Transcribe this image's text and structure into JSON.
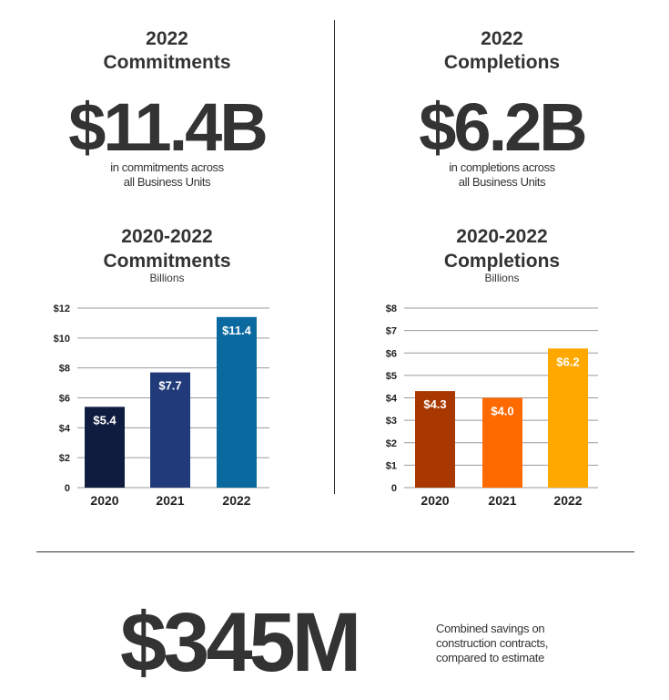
{
  "commitments": {
    "heading_line1": "2022",
    "heading_line2": "Commitments",
    "value": "$11.4B",
    "desc_line1": "in commitments across",
    "desc_line2": "all Business Units",
    "chart_heading_line1": "2020-2022",
    "chart_heading_line2": "Commitments",
    "chart_unit": "Billions"
  },
  "completions": {
    "heading_line1": "2022",
    "heading_line2": "Completions",
    "value": "$6.2B",
    "desc_line1": "in completions across",
    "desc_line2": "all Business Units",
    "chart_heading_line1": "2020-2022",
    "chart_heading_line2": "Completions",
    "chart_unit": "Billions"
  },
  "savings": {
    "value": "$345M",
    "desc_line1": "Combined savings on",
    "desc_line2": "construction contracts,",
    "desc_line3": "compared to estimate"
  },
  "chart_data": [
    {
      "type": "bar",
      "title": "",
      "categories": [
        "2020",
        "2021",
        "2022"
      ],
      "values": [
        5.4,
        7.7,
        11.4
      ],
      "bar_labels": [
        "$5.4",
        "$7.7",
        "$11.4"
      ],
      "colors": [
        "#0f1c3f",
        "#213a7a",
        "#0a6aa0"
      ],
      "ylim": [
        0,
        12
      ],
      "yticks": [
        0,
        2,
        4,
        6,
        8,
        10,
        12
      ],
      "ytick_labels": [
        "0",
        "$2",
        "$4",
        "$6",
        "$8",
        "$10",
        "$12"
      ],
      "grid": true,
      "xlabel": "",
      "ylabel": ""
    },
    {
      "type": "bar",
      "title": "",
      "categories": [
        "2020",
        "2021",
        "2022"
      ],
      "values": [
        4.3,
        4.0,
        6.2
      ],
      "bar_labels": [
        "$4.3",
        "$4.0",
        "$6.2"
      ],
      "colors": [
        "#a83800",
        "#ff6a00",
        "#ffa800"
      ],
      "ylim": [
        0,
        8
      ],
      "yticks": [
        0,
        1,
        2,
        3,
        4,
        5,
        6,
        7,
        8
      ],
      "ytick_labels": [
        "0",
        "$1",
        "$2",
        "$3",
        "$4",
        "$5",
        "$6",
        "$7",
        "$8"
      ],
      "grid": true,
      "xlabel": "",
      "ylabel": ""
    }
  ]
}
